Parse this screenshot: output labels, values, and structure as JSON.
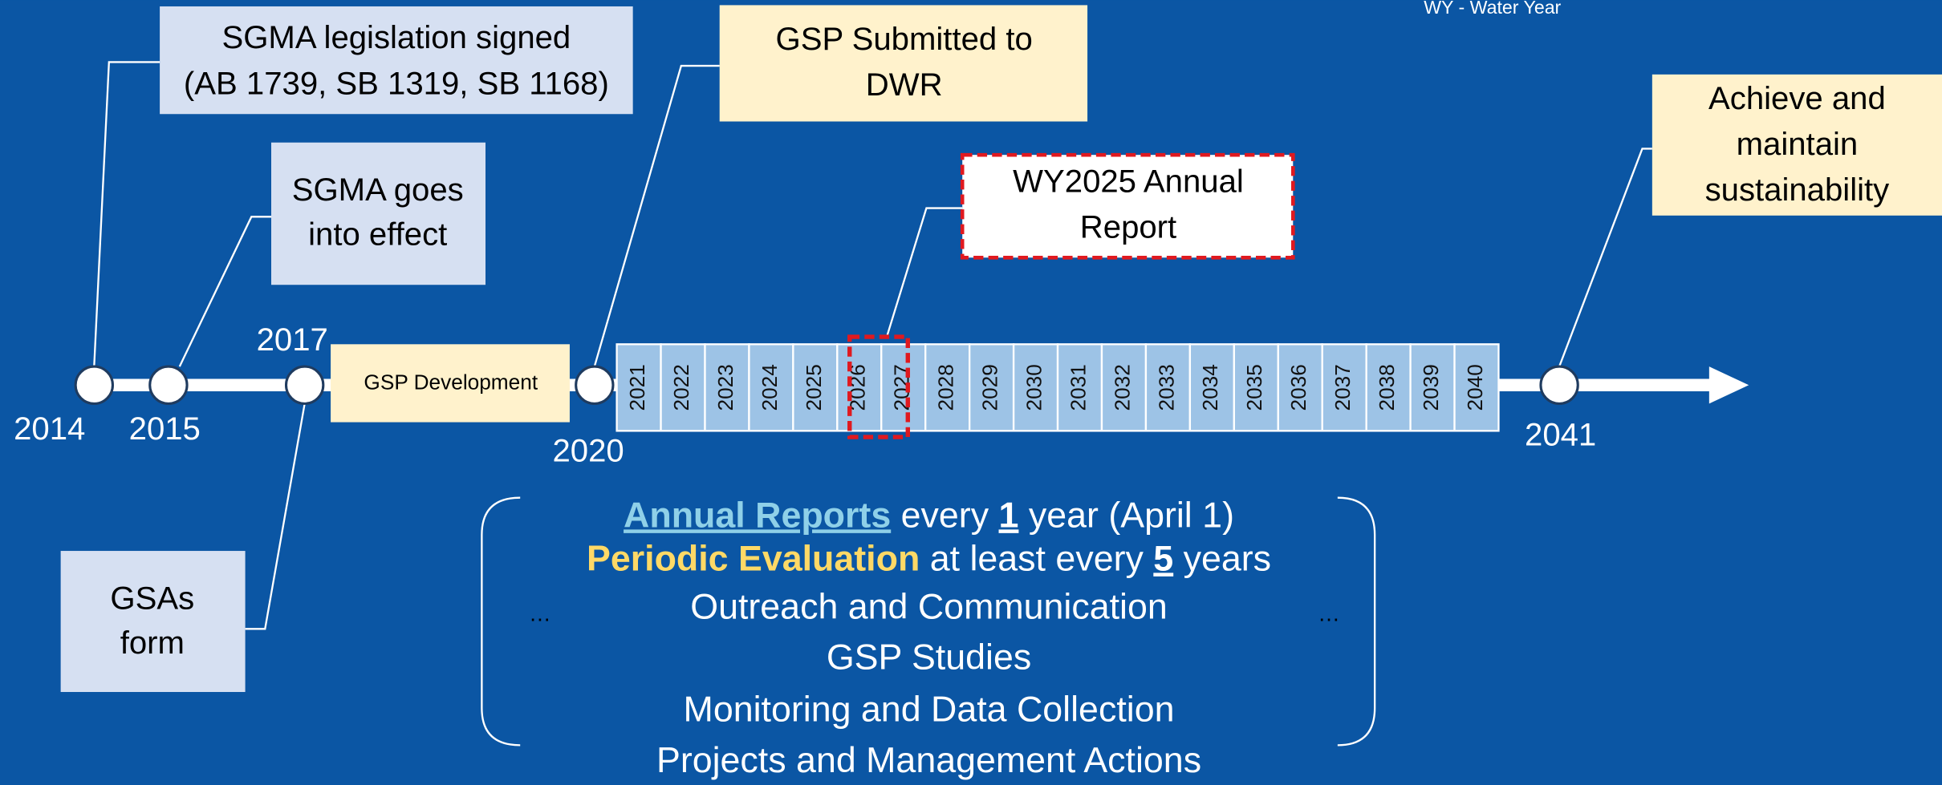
{
  "note": "WY - Water Year",
  "milestones": [
    {
      "year": "2014",
      "lines": [
        "SGMA legislation signed",
        "(AB 1739, SB 1319, SB 1168)"
      ]
    },
    {
      "year": "2015",
      "lines": [
        "SGMA goes",
        "into effect"
      ]
    },
    {
      "year": "2017",
      "lines": [
        "GSAs",
        "form"
      ]
    },
    {
      "year": "2020",
      "lines": [
        "GSP Submitted to",
        "DWR"
      ]
    },
    {
      "year": "2041",
      "lines": [
        "Achieve and",
        "maintain",
        "sustainability"
      ]
    }
  ],
  "gsp_development": "GSP Development",
  "annual_years": [
    "2021",
    "2022",
    "2023",
    "2024",
    "2025",
    "2026",
    "2027",
    "2028",
    "2029",
    "2030",
    "2031",
    "2032",
    "2033",
    "2034",
    "2035",
    "2036",
    "2037",
    "2038",
    "2039",
    "2040"
  ],
  "highlight": {
    "lines": [
      "WY2025 Annual",
      "Report"
    ]
  },
  "activities": {
    "annual": [
      "Annual Reports",
      " every ",
      "1",
      " year (April 1)"
    ],
    "periodic": [
      "Periodic Evaluation",
      " at least every ",
      "5",
      " years"
    ],
    "ongoing": [
      "Outreach and Communication",
      "GSP Studies",
      "Monitoring and Data Collection",
      "Projects and Management Actions"
    ],
    "ellipsis": "…"
  }
}
